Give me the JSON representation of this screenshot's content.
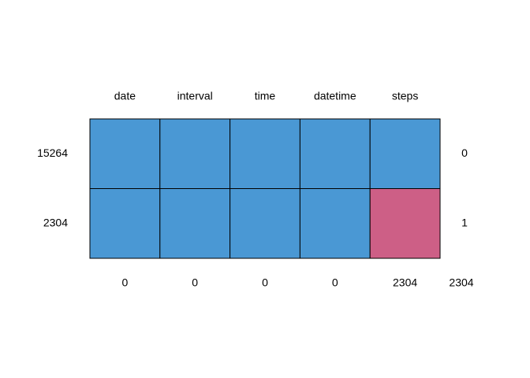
{
  "chart_data": {
    "type": "heatmap",
    "title": "",
    "xlabel": "",
    "ylabel": "",
    "columns": [
      "date",
      "interval",
      "time",
      "datetime",
      "steps"
    ],
    "rows": [
      {
        "count": 15264,
        "missing_vars": 0,
        "pattern": [
          1,
          1,
          1,
          1,
          1
        ]
      },
      {
        "count": 2304,
        "missing_vars": 1,
        "pattern": [
          1,
          1,
          1,
          1,
          0
        ]
      }
    ],
    "missing_totals": [
      0,
      0,
      0,
      0,
      2304
    ],
    "grand_total_missing": 2304,
    "colors": {
      "observed": "#4a98d4",
      "missing": "#cd5f86",
      "border": "#000000",
      "background": "#ffffff"
    },
    "grid": false,
    "legend": "none"
  }
}
